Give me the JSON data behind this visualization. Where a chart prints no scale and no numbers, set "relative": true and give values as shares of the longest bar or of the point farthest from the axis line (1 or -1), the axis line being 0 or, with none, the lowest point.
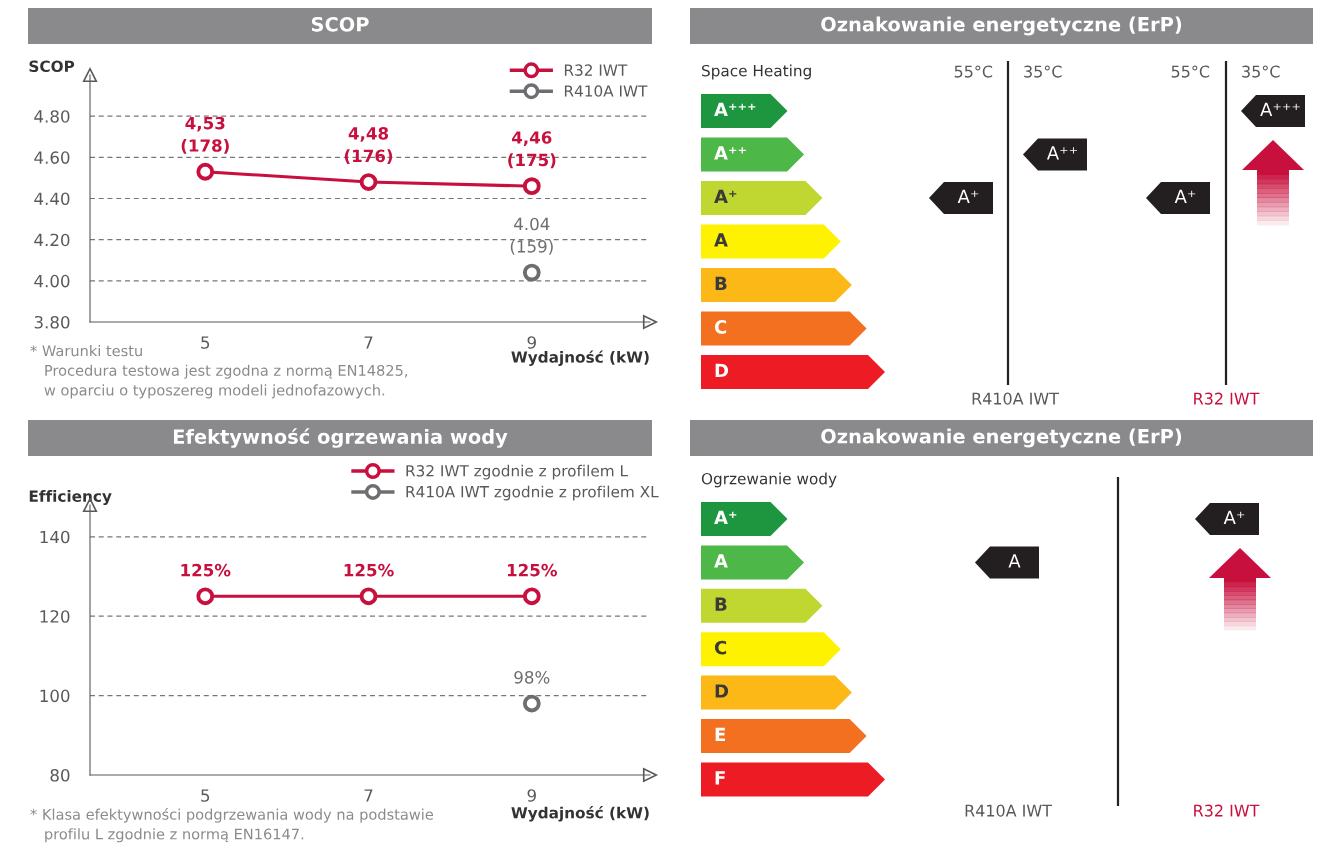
{
  "chart_data": [
    {
      "type": "line",
      "title": "SCOP",
      "ylabel": "SCOP",
      "xlabel": "Wydajność (kW)",
      "categories": [
        "5",
        "7",
        "9"
      ],
      "series": [
        {
          "name": "R32 IWT",
          "color": "#c8103e",
          "values": [
            4.53,
            4.48,
            4.46
          ],
          "value_labels": [
            "4,53\n(178)",
            "4,48\n(176)",
            "4,46\n(175)"
          ]
        },
        {
          "name": "R410A IWT",
          "color": "#6d6e71",
          "values": [
            null,
            null,
            4.04
          ],
          "value_labels": [
            null,
            null,
            "4.04\n(159)"
          ]
        }
      ],
      "ylim": [
        3.8,
        5.0
      ],
      "yticks": [
        {
          "value": 3.8,
          "label": "3.80"
        },
        {
          "value": 4.0,
          "label": "4.00"
        },
        {
          "value": 4.2,
          "label": "4.20"
        },
        {
          "value": 4.4,
          "label": "4.40"
        },
        {
          "value": 4.6,
          "label": "4.60"
        },
        {
          "value": 4.8,
          "label": "4.80"
        }
      ],
      "grid": "y",
      "legend": "top right",
      "marker": "circle",
      "line_style": "solid",
      "annotations": [
        "* Warunki testu\n   Procedura testowa jest zgodna z normą EN14825,\n   w oparciu o typoszereg modeli jednofazowych."
      ]
    },
    {
      "type": "bar",
      "orientation": "horizontal",
      "relative": true,
      "title": "Oznakowanie energetyczne (ErP)",
      "subtitle": "Space Heating",
      "categories": [
        "A⁺⁺⁺",
        "A⁺⁺",
        "A⁺",
        "A",
        "B",
        "C",
        "D"
      ],
      "values": [
        0.47,
        0.56,
        0.66,
        0.76,
        0.82,
        0.9,
        1
      ],
      "colors": [
        "#1e9640",
        "#4db748",
        "#bfd730",
        "#fff200",
        "#fbb817",
        "#f37021",
        "#ed1c24"
      ],
      "annotations": [
        "55°C",
        "35°C",
        "55°C",
        "35°C",
        "R410A IWT",
        "R32 IWT",
        "A⁺",
        "A⁺⁺",
        "A⁺",
        "A⁺⁺⁺"
      ]
    },
    {
      "type": "line",
      "title": "Efektywność ogrzewania wody",
      "ylabel": "Efficiency",
      "xlabel": "Wydajność (kW)",
      "categories": [
        "5",
        "7",
        "9"
      ],
      "series": [
        {
          "name": "R32 IWT zgodnie z profilem L",
          "color": "#c8103e",
          "values": [
            125,
            125,
            125
          ],
          "value_labels": [
            "125%",
            "125%",
            "125%"
          ]
        },
        {
          "name": "R410A IWT zgodnie z profilem XL",
          "color": "#6d6e71",
          "values": [
            null,
            null,
            98
          ],
          "value_labels": [
            null,
            null,
            "98%"
          ]
        }
      ],
      "ylim": [
        80,
        148
      ],
      "yticks": [
        80,
        100,
        120,
        140
      ],
      "grid": "y",
      "legend": "top right",
      "marker": "circle",
      "line_style": "solid",
      "annotations": [
        "* Klasa efektywności podgrzewania wody na podstawie\n   profilu L zgodnie z normą EN16147."
      ]
    },
    {
      "type": "bar",
      "orientation": "horizontal",
      "relative": true,
      "title": "Oznakowanie energetyczne (ErP)",
      "subtitle": "Ogrzewanie wody",
      "categories": [
        "A⁺",
        "A",
        "B",
        "C",
        "D",
        "E",
        "F"
      ],
      "values": [
        0.47,
        0.56,
        0.66,
        0.76,
        0.82,
        0.9,
        1
      ],
      "colors": [
        "#1e9640",
        "#4db748",
        "#bfd730",
        "#fff200",
        "#fbb817",
        "#f37021",
        "#ed1c24"
      ],
      "annotations": [
        "R410A IWT",
        "R32 IWT",
        "A",
        "A⁺"
      ]
    }
  ]
}
